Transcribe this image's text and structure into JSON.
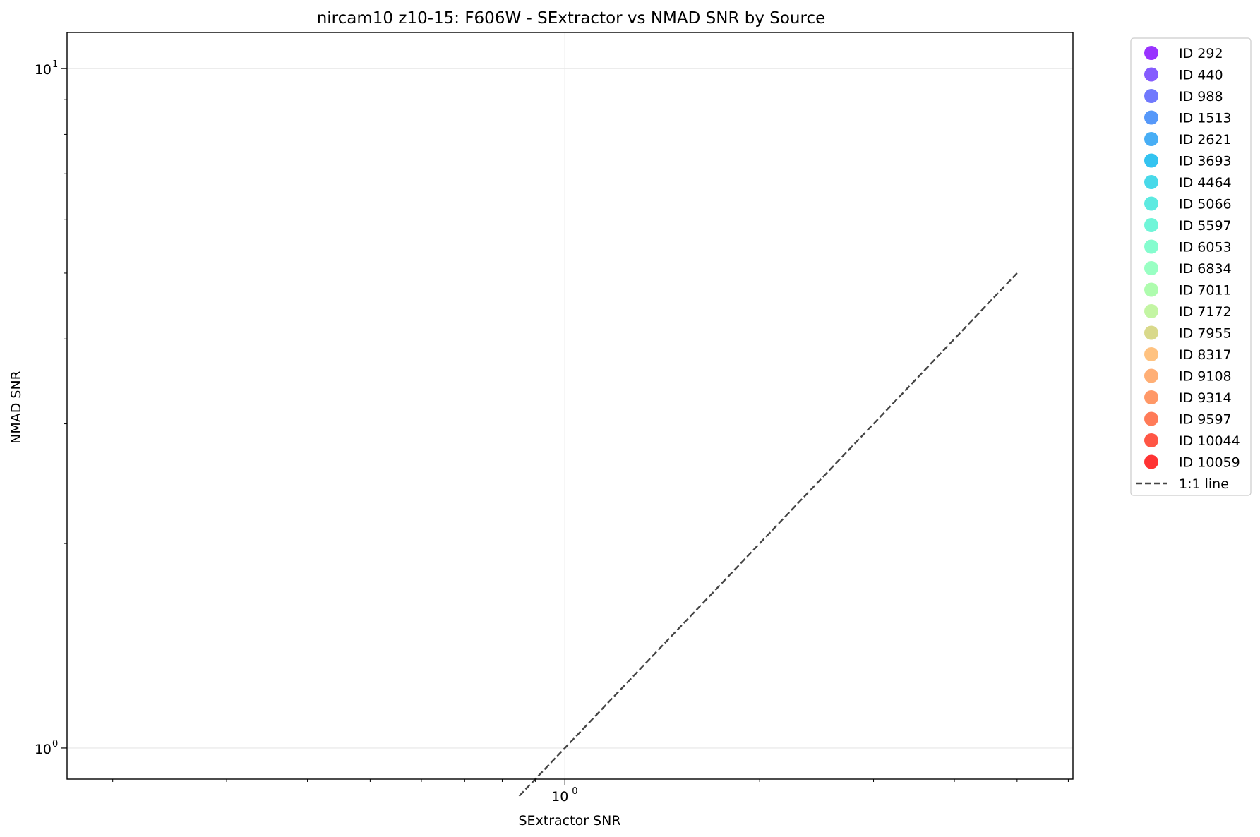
{
  "chart_data": {
    "type": "scatter",
    "title": "nircam10 z10-15: F606W - SExtractor vs NMAD SNR by Source",
    "xlabel": "SExtractor SNR",
    "ylabel": "NMAD SNR",
    "xscale": "log",
    "yscale": "log",
    "xlim": [
      0.17,
      6.1
    ],
    "ylim": [
      0.9,
      11.3
    ],
    "grid": true,
    "legend_position": "outside-right",
    "x_major_ticks": [
      {
        "value": 1,
        "base": "10",
        "exp": "0"
      }
    ],
    "y_major_ticks": [
      {
        "value": 1,
        "base": "10",
        "exp": "0"
      },
      {
        "value": 10,
        "base": "10",
        "exp": "1"
      }
    ],
    "series": [
      {
        "name": "ID 292",
        "color": "#8000ff",
        "points": []
      },
      {
        "name": "ID 440",
        "color": "#6633fe",
        "points": []
      },
      {
        "name": "ID 988",
        "color": "#4c57fc",
        "points": []
      },
      {
        "name": "ID 1513",
        "color": "#2c7ef7",
        "points": []
      },
      {
        "name": "ID 2621",
        "color": "#1a9af2",
        "points": []
      },
      {
        "name": "ID 3693",
        "color": "#00b4ec",
        "points": []
      },
      {
        "name": "ID 4464",
        "color": "#1ad0e3",
        "points": []
      },
      {
        "name": "ID 5066",
        "color": "#34e5d9",
        "points": []
      },
      {
        "name": "ID 5597",
        "color": "#4cf2ce",
        "points": []
      },
      {
        "name": "ID 6053",
        "color": "#66fbc2",
        "points": []
      },
      {
        "name": "ID 6834",
        "color": "#80ffb4",
        "points": []
      },
      {
        "name": "ID 7011",
        "color": "#9afb9a",
        "points": []
      },
      {
        "name": "ID 7172",
        "color": "#b4f28c",
        "points": []
      },
      {
        "name": "ID 7955",
        "color": "#d0cf6e",
        "points": []
      },
      {
        "name": "ID 8317",
        "color": "#ffb360",
        "points": []
      },
      {
        "name": "ID 9108",
        "color": "#ff9b54",
        "points": []
      },
      {
        "name": "ID 9314",
        "color": "#ff7e41",
        "points": []
      },
      {
        "name": "ID 9597",
        "color": "#ff5a2e",
        "points": []
      },
      {
        "name": "ID 10044",
        "color": "#ff2c16",
        "points": []
      },
      {
        "name": "ID 10059",
        "color": "#ff0000",
        "points": []
      }
    ],
    "reference_line": {
      "name": "1:1 line",
      "color": "#444444",
      "style": "dashed",
      "x": [
        0.85,
        5
      ],
      "y": [
        0.85,
        5
      ]
    }
  }
}
